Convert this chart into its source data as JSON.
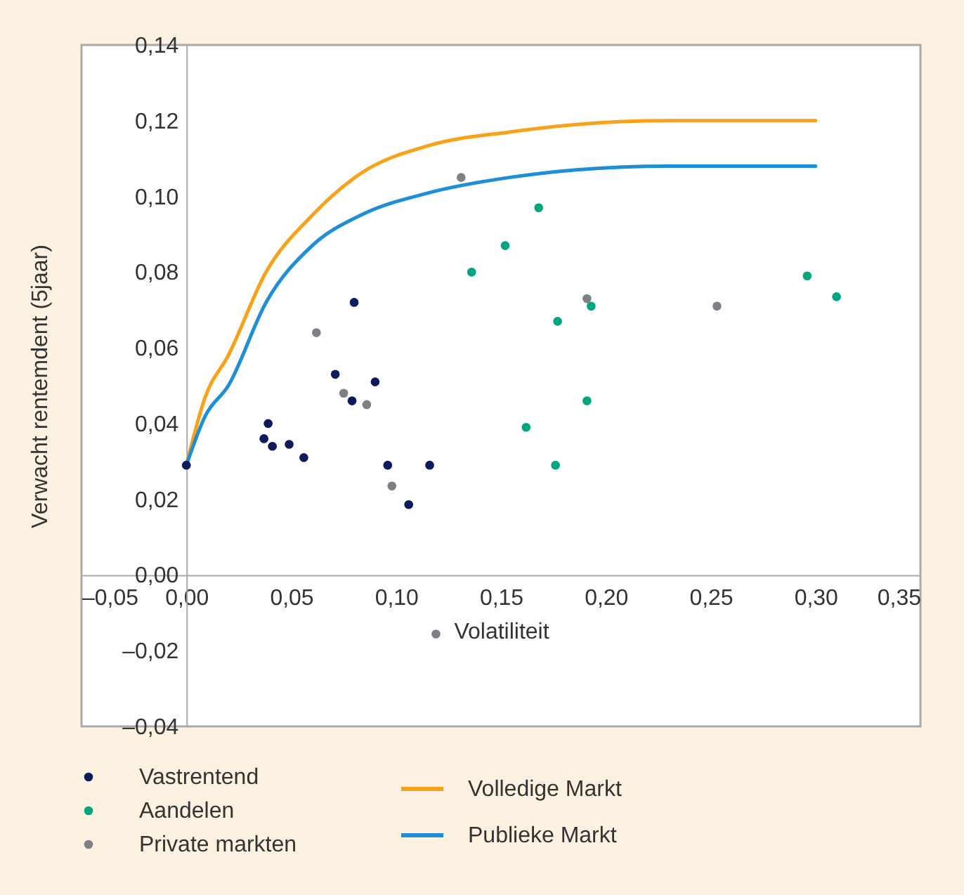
{
  "chart_data": {
    "type": "scatter",
    "xlabel": "Volatiliteit",
    "ylabel": "Verwacht rentemdent (5jaar)",
    "legend": "bottom",
    "xlim": [
      -0.05,
      0.35
    ],
    "ylim": [
      -0.04,
      0.14
    ],
    "xticks": [
      {
        "value": -0.05,
        "label": "–0,05"
      },
      {
        "value": 0,
        "label": "0,00"
      },
      {
        "value": 0.05,
        "label": "0,05"
      },
      {
        "value": 0.1,
        "label": "0,10"
      },
      {
        "value": 0.15,
        "label": "0,15"
      },
      {
        "value": 0.2,
        "label": "0,20"
      },
      {
        "value": 0.25,
        "label": "0,25"
      },
      {
        "value": 0.3,
        "label": "0,30"
      },
      {
        "value": 0.35,
        "label": "0,35"
      }
    ],
    "yticks": [
      {
        "value": -0.04,
        "label": "–0,04"
      },
      {
        "value": -0.02,
        "label": "–0,02"
      },
      {
        "value": 0,
        "label": "0,00"
      },
      {
        "value": 0.02,
        "label": "0,02"
      },
      {
        "value": 0.04,
        "label": "0,04"
      },
      {
        "value": 0.06,
        "label": "0,06"
      },
      {
        "value": 0.08,
        "label": "0,08"
      },
      {
        "value": 0.1,
        "label": "0,10"
      },
      {
        "value": 0.12,
        "label": "0,12"
      },
      {
        "value": 0.14,
        "label": "0,14"
      }
    ],
    "series": [
      {
        "type": "line",
        "name": "Volledige Markt",
        "color": "#f7a21b",
        "x": [
          0,
          0.009,
          0.02,
          0.038,
          0.06,
          0.083,
          0.116,
          0.154,
          0.186,
          0.23,
          0.3
        ],
        "values": [
          0.029,
          0.047,
          0.058,
          0.08,
          0.095,
          0.106,
          0.1135,
          0.117,
          0.119,
          0.12,
          0.12
        ]
      },
      {
        "type": "line",
        "name": "Publieke Markt",
        "color": "#1e8fd5",
        "x": [
          0,
          0.009,
          0.02,
          0.038,
          0.06,
          0.083,
          0.116,
          0.154,
          0.186,
          0.23,
          0.3
        ],
        "values": [
          0.029,
          0.042,
          0.05,
          0.072,
          0.087,
          0.095,
          0.101,
          0.105,
          0.107,
          0.108,
          0.108
        ]
      },
      {
        "marker": "circle",
        "name": "Vastrentend",
        "color": "#0d1a5c",
        "x": [
          0.08,
          0.071,
          0.09,
          0.079,
          0.039,
          0.037,
          0.041,
          0.049,
          0.056,
          0.096,
          0.116,
          0.106,
          0
        ],
        "values": [
          0.072,
          0.053,
          0.051,
          0.046,
          0.04,
          0.036,
          0.034,
          0.0345,
          0.031,
          0.029,
          0.029,
          0.0186,
          0.029
        ]
      },
      {
        "marker": "circle",
        "name": "Aandelen",
        "color": "#00a77e",
        "x": [
          0.136,
          0.152,
          0.168,
          0.193,
          0.177,
          0.191,
          0.162,
          0.176,
          0.296,
          0.31
        ],
        "values": [
          0.08,
          0.087,
          0.097,
          0.071,
          0.067,
          0.046,
          0.039,
          0.029,
          0.079,
          0.0735
        ]
      },
      {
        "marker": "circle",
        "name": "Private markten",
        "color": "#7f7f87",
        "x": [
          0.062,
          0.075,
          0.086,
          0.131,
          0.098,
          0.119,
          0.191,
          0.253
        ],
        "values": [
          0.064,
          0.048,
          0.045,
          0.105,
          0.0235,
          -0.0156,
          0.073,
          0.071
        ]
      }
    ]
  }
}
